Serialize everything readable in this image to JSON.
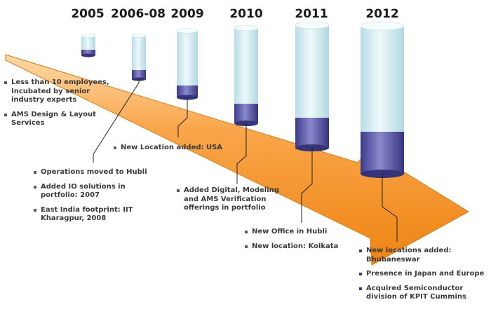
{
  "timeline": {
    "years": [
      "2005",
      "2006-08",
      "2009",
      "2010",
      "2011",
      "2012"
    ],
    "milestones": [
      {
        "year": "2005",
        "bullets": [
          "Less than 10 employees, Incubated by senior industry experts",
          "AMS Design & Layout Services"
        ]
      },
      {
        "year": "2006-08",
        "bullets": [
          "Operations moved to Hubli",
          "Added IO solutions in portfolio: 2007",
          "East India footprint: IIT Kharagpur, 2008"
        ]
      },
      {
        "year": "2009",
        "bullets": [
          "New Location added: USA"
        ]
      },
      {
        "year": "2010",
        "bullets": [
          "Added Digital, Modeling and AMS Verification offerings in portfolio"
        ]
      },
      {
        "year": "2011",
        "bullets": [
          "New Office in Hubli",
          "New location: Kolkata"
        ]
      },
      {
        "year": "2012",
        "bullets": [
          "New locations added: Bhubaneswar",
          "Presence in Japan and Europe",
          "Acquired Semiconductor division of KPIT Cummins"
        ]
      }
    ],
    "colors": {
      "arrow": "#f7931e",
      "arrow_highlight": "#ffd9a8",
      "cylinder_top": "#cfeaf0",
      "cylinder_bottom": "#4b4a9e",
      "leader_line": "#222222",
      "bullet_blue": "#2b3f8c"
    }
  }
}
